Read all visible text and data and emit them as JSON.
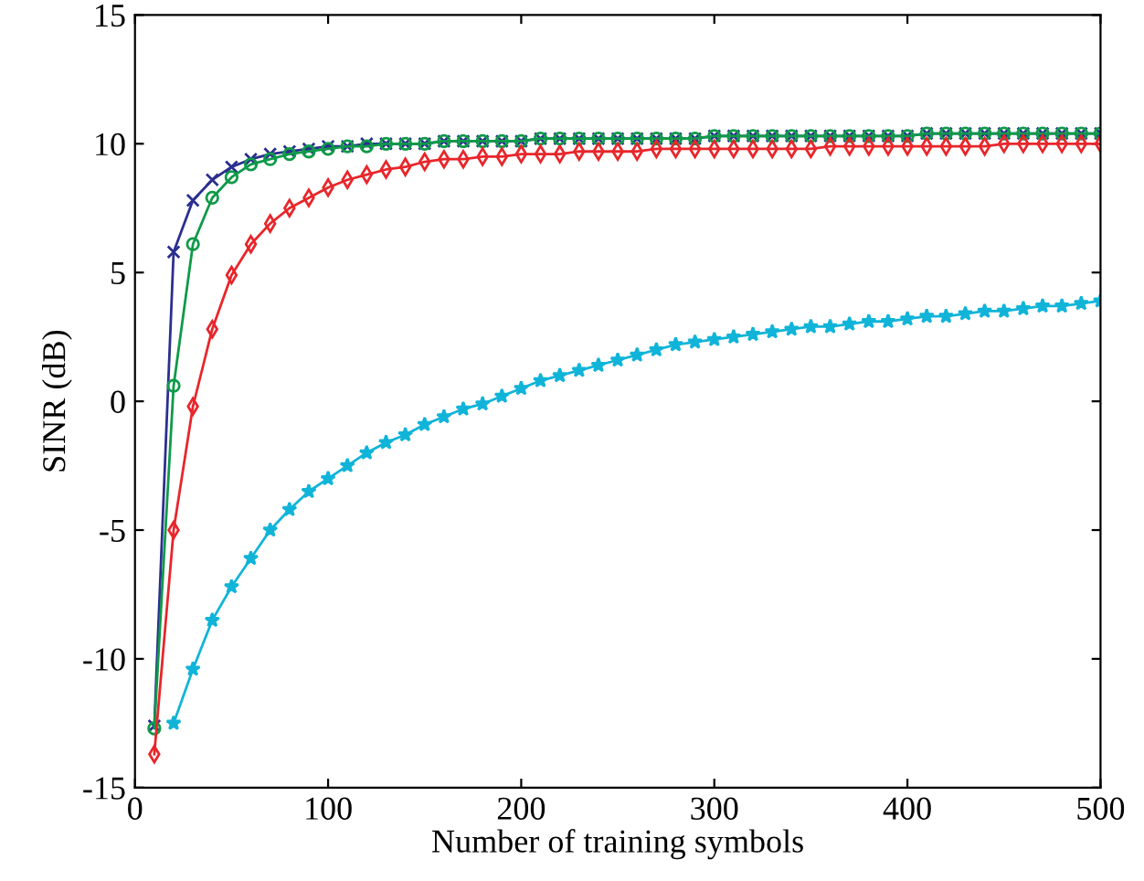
{
  "chart_data": {
    "type": "line",
    "xlabel": "Number of training symbols",
    "ylabel": "SINR (dB)",
    "x": [
      10,
      20,
      30,
      40,
      50,
      60,
      70,
      80,
      90,
      100,
      110,
      120,
      130,
      140,
      150,
      160,
      170,
      180,
      190,
      200,
      210,
      220,
      230,
      240,
      250,
      260,
      270,
      280,
      290,
      300,
      310,
      320,
      330,
      340,
      350,
      360,
      370,
      380,
      390,
      400,
      410,
      420,
      430,
      440,
      450,
      460,
      470,
      480,
      490,
      500
    ],
    "series": [
      {
        "color": "#2b2f8f",
        "marker": "cross",
        "values": [
          -12.6,
          5.8,
          7.8,
          8.6,
          9.1,
          9.4,
          9.6,
          9.7,
          9.8,
          9.9,
          9.9,
          10.0,
          10.0,
          10.0,
          10.0,
          10.1,
          10.1,
          10.1,
          10.1,
          10.1,
          10.2,
          10.2,
          10.2,
          10.2,
          10.2,
          10.2,
          10.2,
          10.2,
          10.2,
          10.3,
          10.3,
          10.3,
          10.3,
          10.3,
          10.3,
          10.3,
          10.3,
          10.3,
          10.3,
          10.3,
          10.4,
          10.4,
          10.4,
          10.4,
          10.4,
          10.4,
          10.4,
          10.4,
          10.4,
          10.4
        ]
      },
      {
        "color": "#0f9a48",
        "marker": "circle",
        "values": [
          -12.7,
          0.6,
          6.1,
          7.9,
          8.7,
          9.2,
          9.4,
          9.6,
          9.7,
          9.8,
          9.9,
          9.9,
          10.0,
          10.0,
          10.0,
          10.1,
          10.1,
          10.1,
          10.1,
          10.1,
          10.2,
          10.2,
          10.2,
          10.2,
          10.2,
          10.2,
          10.2,
          10.2,
          10.2,
          10.3,
          10.3,
          10.3,
          10.3,
          10.3,
          10.3,
          10.3,
          10.3,
          10.3,
          10.3,
          10.3,
          10.4,
          10.4,
          10.4,
          10.4,
          10.4,
          10.4,
          10.4,
          10.4,
          10.4,
          10.4
        ]
      },
      {
        "color": "#e8262b",
        "marker": "diamond",
        "values": [
          -13.7,
          -5.0,
          -0.2,
          2.8,
          4.9,
          6.1,
          6.9,
          7.5,
          7.9,
          8.3,
          8.6,
          8.8,
          9.0,
          9.1,
          9.3,
          9.4,
          9.4,
          9.5,
          9.5,
          9.6,
          9.6,
          9.6,
          9.7,
          9.7,
          9.7,
          9.7,
          9.8,
          9.8,
          9.8,
          9.8,
          9.8,
          9.8,
          9.8,
          9.8,
          9.8,
          9.9,
          9.9,
          9.9,
          9.9,
          9.9,
          9.9,
          9.9,
          9.9,
          9.9,
          10.0,
          10.0,
          10.0,
          10.0,
          10.0,
          10.0
        ]
      },
      {
        "color": "#10b4d8",
        "marker": "star",
        "values": [
          null,
          -12.5,
          -10.4,
          -8.5,
          -7.2,
          -6.1,
          -5.0,
          -4.2,
          -3.5,
          -3.0,
          -2.5,
          -2.0,
          -1.6,
          -1.3,
          -0.9,
          -0.6,
          -0.3,
          -0.1,
          0.2,
          0.5,
          0.8,
          1.0,
          1.2,
          1.4,
          1.6,
          1.8,
          2.0,
          2.2,
          2.3,
          2.4,
          2.5,
          2.6,
          2.7,
          2.8,
          2.9,
          2.9,
          3.0,
          3.1,
          3.1,
          3.2,
          3.3,
          3.3,
          3.4,
          3.5,
          3.5,
          3.6,
          3.7,
          3.7,
          3.8,
          3.9
        ]
      }
    ],
    "xlim": [
      0,
      500
    ],
    "xticks": [
      0,
      100,
      200,
      300,
      400,
      500
    ],
    "ylim": [
      -15,
      15
    ],
    "yticks": [
      -15,
      -10,
      -5,
      0,
      5,
      10,
      15
    ],
    "line_style": "solid"
  }
}
